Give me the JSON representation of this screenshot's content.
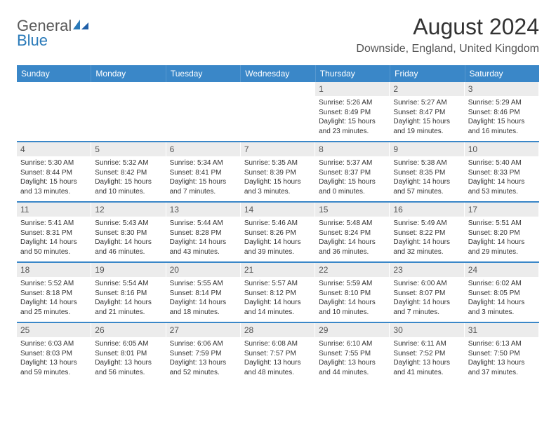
{
  "logo": {
    "word1": "General",
    "word2": "Blue"
  },
  "title": "August 2024",
  "location": "Downside, England, United Kingdom",
  "colors": {
    "header_bar": "#3a87c8",
    "week_divider": "#3a87c8",
    "date_row_bg": "#ececec",
    "logo_gray": "#5a5a5a",
    "logo_blue": "#2a7ab9",
    "text": "#333333"
  },
  "day_names": [
    "Sunday",
    "Monday",
    "Tuesday",
    "Wednesday",
    "Thursday",
    "Friday",
    "Saturday"
  ],
  "weeks": [
    [
      {
        "date": "",
        "lines": []
      },
      {
        "date": "",
        "lines": []
      },
      {
        "date": "",
        "lines": []
      },
      {
        "date": "",
        "lines": []
      },
      {
        "date": "1",
        "lines": [
          "Sunrise: 5:26 AM",
          "Sunset: 8:49 PM",
          "Daylight: 15 hours and 23 minutes."
        ]
      },
      {
        "date": "2",
        "lines": [
          "Sunrise: 5:27 AM",
          "Sunset: 8:47 PM",
          "Daylight: 15 hours and 19 minutes."
        ]
      },
      {
        "date": "3",
        "lines": [
          "Sunrise: 5:29 AM",
          "Sunset: 8:46 PM",
          "Daylight: 15 hours and 16 minutes."
        ]
      }
    ],
    [
      {
        "date": "4",
        "lines": [
          "Sunrise: 5:30 AM",
          "Sunset: 8:44 PM",
          "Daylight: 15 hours and 13 minutes."
        ]
      },
      {
        "date": "5",
        "lines": [
          "Sunrise: 5:32 AM",
          "Sunset: 8:42 PM",
          "Daylight: 15 hours and 10 minutes."
        ]
      },
      {
        "date": "6",
        "lines": [
          "Sunrise: 5:34 AM",
          "Sunset: 8:41 PM",
          "Daylight: 15 hours and 7 minutes."
        ]
      },
      {
        "date": "7",
        "lines": [
          "Sunrise: 5:35 AM",
          "Sunset: 8:39 PM",
          "Daylight: 15 hours and 3 minutes."
        ]
      },
      {
        "date": "8",
        "lines": [
          "Sunrise: 5:37 AM",
          "Sunset: 8:37 PM",
          "Daylight: 15 hours and 0 minutes."
        ]
      },
      {
        "date": "9",
        "lines": [
          "Sunrise: 5:38 AM",
          "Sunset: 8:35 PM",
          "Daylight: 14 hours and 57 minutes."
        ]
      },
      {
        "date": "10",
        "lines": [
          "Sunrise: 5:40 AM",
          "Sunset: 8:33 PM",
          "Daylight: 14 hours and 53 minutes."
        ]
      }
    ],
    [
      {
        "date": "11",
        "lines": [
          "Sunrise: 5:41 AM",
          "Sunset: 8:31 PM",
          "Daylight: 14 hours and 50 minutes."
        ]
      },
      {
        "date": "12",
        "lines": [
          "Sunrise: 5:43 AM",
          "Sunset: 8:30 PM",
          "Daylight: 14 hours and 46 minutes."
        ]
      },
      {
        "date": "13",
        "lines": [
          "Sunrise: 5:44 AM",
          "Sunset: 8:28 PM",
          "Daylight: 14 hours and 43 minutes."
        ]
      },
      {
        "date": "14",
        "lines": [
          "Sunrise: 5:46 AM",
          "Sunset: 8:26 PM",
          "Daylight: 14 hours and 39 minutes."
        ]
      },
      {
        "date": "15",
        "lines": [
          "Sunrise: 5:48 AM",
          "Sunset: 8:24 PM",
          "Daylight: 14 hours and 36 minutes."
        ]
      },
      {
        "date": "16",
        "lines": [
          "Sunrise: 5:49 AM",
          "Sunset: 8:22 PM",
          "Daylight: 14 hours and 32 minutes."
        ]
      },
      {
        "date": "17",
        "lines": [
          "Sunrise: 5:51 AM",
          "Sunset: 8:20 PM",
          "Daylight: 14 hours and 29 minutes."
        ]
      }
    ],
    [
      {
        "date": "18",
        "lines": [
          "Sunrise: 5:52 AM",
          "Sunset: 8:18 PM",
          "Daylight: 14 hours and 25 minutes."
        ]
      },
      {
        "date": "19",
        "lines": [
          "Sunrise: 5:54 AM",
          "Sunset: 8:16 PM",
          "Daylight: 14 hours and 21 minutes."
        ]
      },
      {
        "date": "20",
        "lines": [
          "Sunrise: 5:55 AM",
          "Sunset: 8:14 PM",
          "Daylight: 14 hours and 18 minutes."
        ]
      },
      {
        "date": "21",
        "lines": [
          "Sunrise: 5:57 AM",
          "Sunset: 8:12 PM",
          "Daylight: 14 hours and 14 minutes."
        ]
      },
      {
        "date": "22",
        "lines": [
          "Sunrise: 5:59 AM",
          "Sunset: 8:10 PM",
          "Daylight: 14 hours and 10 minutes."
        ]
      },
      {
        "date": "23",
        "lines": [
          "Sunrise: 6:00 AM",
          "Sunset: 8:07 PM",
          "Daylight: 14 hours and 7 minutes."
        ]
      },
      {
        "date": "24",
        "lines": [
          "Sunrise: 6:02 AM",
          "Sunset: 8:05 PM",
          "Daylight: 14 hours and 3 minutes."
        ]
      }
    ],
    [
      {
        "date": "25",
        "lines": [
          "Sunrise: 6:03 AM",
          "Sunset: 8:03 PM",
          "Daylight: 13 hours and 59 minutes."
        ]
      },
      {
        "date": "26",
        "lines": [
          "Sunrise: 6:05 AM",
          "Sunset: 8:01 PM",
          "Daylight: 13 hours and 56 minutes."
        ]
      },
      {
        "date": "27",
        "lines": [
          "Sunrise: 6:06 AM",
          "Sunset: 7:59 PM",
          "Daylight: 13 hours and 52 minutes."
        ]
      },
      {
        "date": "28",
        "lines": [
          "Sunrise: 6:08 AM",
          "Sunset: 7:57 PM",
          "Daylight: 13 hours and 48 minutes."
        ]
      },
      {
        "date": "29",
        "lines": [
          "Sunrise: 6:10 AM",
          "Sunset: 7:55 PM",
          "Daylight: 13 hours and 44 minutes."
        ]
      },
      {
        "date": "30",
        "lines": [
          "Sunrise: 6:11 AM",
          "Sunset: 7:52 PM",
          "Daylight: 13 hours and 41 minutes."
        ]
      },
      {
        "date": "31",
        "lines": [
          "Sunrise: 6:13 AM",
          "Sunset: 7:50 PM",
          "Daylight: 13 hours and 37 minutes."
        ]
      }
    ]
  ]
}
